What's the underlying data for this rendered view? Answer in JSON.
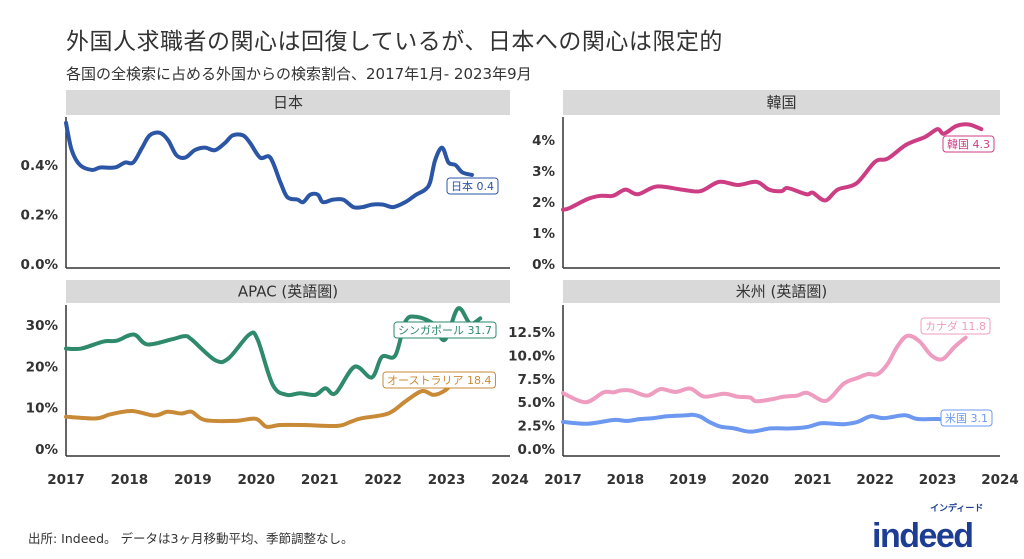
{
  "title": "外国人求職者の関心は回復しているが、日本への関心は限定的",
  "subtitle": "各国の全検索に占める外国からの検索割合、2017年1月- 2023年9月",
  "footer": "出所: Indeed。 データは3ヶ月移動平均、季節調整なし。",
  "logo": {
    "word": "indeed",
    "kana": "インディード",
    "color": "#1c3d93"
  },
  "chart_data": [
    {
      "type": "line",
      "title": "日本",
      "xticks": [
        "2017",
        "2018",
        "2019",
        "2020",
        "2021",
        "2022",
        "2023",
        "2024"
      ],
      "xlim": [
        2017,
        2024
      ],
      "yticks": [
        {
          "v": 0,
          "t": "0.0%"
        },
        {
          "v": 0.2,
          "t": "0.2%"
        },
        {
          "v": 0.4,
          "t": "0.4%"
        }
      ],
      "ylim": [
        0,
        0.59
      ],
      "show_xticks": false,
      "series": [
        {
          "name": "日本",
          "end_value": "0.4",
          "color": "#2b55a5",
          "points": [
            [
              2017.0,
              0.57
            ],
            [
              2017.09,
              0.46
            ],
            [
              2017.22,
              0.4
            ],
            [
              2017.41,
              0.38
            ],
            [
              2017.54,
              0.39
            ],
            [
              2017.77,
              0.39
            ],
            [
              2017.93,
              0.41
            ],
            [
              2018.06,
              0.41
            ],
            [
              2018.2,
              0.47
            ],
            [
              2018.32,
              0.52
            ],
            [
              2018.48,
              0.53
            ],
            [
              2018.61,
              0.5
            ],
            [
              2018.74,
              0.44
            ],
            [
              2018.88,
              0.43
            ],
            [
              2019.03,
              0.46
            ],
            [
              2019.19,
              0.47
            ],
            [
              2019.35,
              0.46
            ],
            [
              2019.51,
              0.49
            ],
            [
              2019.63,
              0.52
            ],
            [
              2019.79,
              0.52
            ],
            [
              2019.9,
              0.49
            ],
            [
              2020.06,
              0.43
            ],
            [
              2020.22,
              0.43
            ],
            [
              2020.38,
              0.33
            ],
            [
              2020.49,
              0.27
            ],
            [
              2020.65,
              0.26
            ],
            [
              2020.74,
              0.25
            ],
            [
              2020.85,
              0.28
            ],
            [
              2020.97,
              0.28
            ],
            [
              2021.05,
              0.25
            ],
            [
              2021.21,
              0.26
            ],
            [
              2021.37,
              0.26
            ],
            [
              2021.53,
              0.23
            ],
            [
              2021.67,
              0.23
            ],
            [
              2021.83,
              0.24
            ],
            [
              2022.0,
              0.24
            ],
            [
              2022.16,
              0.23
            ],
            [
              2022.35,
              0.25
            ],
            [
              2022.52,
              0.28
            ],
            [
              2022.66,
              0.3
            ],
            [
              2022.74,
              0.33
            ],
            [
              2022.82,
              0.42
            ],
            [
              2022.93,
              0.47
            ],
            [
              2023.03,
              0.41
            ],
            [
              2023.14,
              0.4
            ],
            [
              2023.25,
              0.37
            ],
            [
              2023.4,
              0.36
            ]
          ]
        }
      ]
    },
    {
      "type": "line",
      "title": "韓国",
      "xticks": [
        "2017",
        "2018",
        "2019",
        "2020",
        "2021",
        "2022",
        "2023",
        "2024"
      ],
      "xlim": [
        2017,
        2024
      ],
      "yticks": [
        {
          "v": 0,
          "t": "0%"
        },
        {
          "v": 1,
          "t": "1%"
        },
        {
          "v": 2,
          "t": "2%"
        },
        {
          "v": 3,
          "t": "3%"
        },
        {
          "v": 4,
          "t": "4%"
        }
      ],
      "ylim": [
        0,
        4.7
      ],
      "show_xticks": false,
      "series": [
        {
          "name": "韓国",
          "end_value": "4.3",
          "color": "#cc3d84",
          "points": [
            [
              2017.0,
              1.75
            ],
            [
              2017.1,
              1.8
            ],
            [
              2017.4,
              2.1
            ],
            [
              2017.6,
              2.2
            ],
            [
              2017.8,
              2.2
            ],
            [
              2018.0,
              2.4
            ],
            [
              2018.2,
              2.25
            ],
            [
              2018.5,
              2.5
            ],
            [
              2018.9,
              2.4
            ],
            [
              2019.2,
              2.35
            ],
            [
              2019.5,
              2.65
            ],
            [
              2019.8,
              2.55
            ],
            [
              2020.1,
              2.65
            ],
            [
              2020.3,
              2.4
            ],
            [
              2020.5,
              2.35
            ],
            [
              2020.6,
              2.45
            ],
            [
              2020.9,
              2.25
            ],
            [
              2021.0,
              2.3
            ],
            [
              2021.2,
              2.05
            ],
            [
              2021.4,
              2.4
            ],
            [
              2021.7,
              2.6
            ],
            [
              2022.0,
              3.3
            ],
            [
              2022.2,
              3.4
            ],
            [
              2022.5,
              3.85
            ],
            [
              2022.8,
              4.1
            ],
            [
              2023.0,
              4.35
            ],
            [
              2023.1,
              4.2
            ],
            [
              2023.3,
              4.45
            ],
            [
              2023.5,
              4.5
            ],
            [
              2023.7,
              4.35
            ]
          ]
        }
      ]
    },
    {
      "type": "line",
      "title": "APAC (英語圏)",
      "xticks": [
        "2017",
        "2018",
        "2019",
        "2020",
        "2021",
        "2022",
        "2023",
        "2024"
      ],
      "xlim": [
        2017,
        2024
      ],
      "yticks": [
        {
          "v": 0,
          "t": "0%"
        },
        {
          "v": 10,
          "t": "10%"
        },
        {
          "v": 20,
          "t": "20%"
        },
        {
          "v": 30,
          "t": "30%"
        }
      ],
      "ylim": [
        0,
        35
      ],
      "show_xticks": true,
      "series": [
        {
          "name": "シンガポール",
          "end_value": "31.7",
          "color": "#2e8a6a",
          "points": [
            [
              2017.0,
              24.3
            ],
            [
              2017.24,
              24.3
            ],
            [
              2017.59,
              26.0
            ],
            [
              2017.8,
              26.2
            ],
            [
              2018.07,
              27.7
            ],
            [
              2018.28,
              25.3
            ],
            [
              2018.66,
              26.5
            ],
            [
              2018.87,
              27.3
            ],
            [
              2018.98,
              26.5
            ],
            [
              2019.35,
              21.5
            ],
            [
              2019.56,
              21.9
            ],
            [
              2019.89,
              27.7
            ],
            [
              2020.02,
              26.5
            ],
            [
              2020.26,
              15.5
            ],
            [
              2020.48,
              13.1
            ],
            [
              2020.69,
              13.5
            ],
            [
              2020.93,
              13.1
            ],
            [
              2021.09,
              14.7
            ],
            [
              2021.25,
              13.5
            ],
            [
              2021.55,
              19.9
            ],
            [
              2021.82,
              17.3
            ],
            [
              2021.98,
              22.3
            ],
            [
              2022.19,
              22.6
            ],
            [
              2022.35,
              30.8
            ],
            [
              2022.51,
              32.0
            ],
            [
              2022.78,
              30.4
            ],
            [
              2022.97,
              26.4
            ],
            [
              2023.18,
              34.0
            ],
            [
              2023.37,
              30.4
            ],
            [
              2023.53,
              31.6
            ]
          ]
        },
        {
          "name": "オーストラリア",
          "end_value": "18.4",
          "color": "#c98a38",
          "points": [
            [
              2017.0,
              7.8
            ],
            [
              2017.48,
              7.4
            ],
            [
              2017.7,
              8.4
            ],
            [
              2018.04,
              9.2
            ],
            [
              2018.39,
              8.1
            ],
            [
              2018.6,
              9.0
            ],
            [
              2018.82,
              8.6
            ],
            [
              2018.98,
              9.0
            ],
            [
              2019.19,
              7.0
            ],
            [
              2019.67,
              6.8
            ],
            [
              2019.99,
              7.3
            ],
            [
              2020.16,
              5.4
            ],
            [
              2020.37,
              5.8
            ],
            [
              2020.74,
              5.8
            ],
            [
              2021.28,
              5.6
            ],
            [
              2021.49,
              6.6
            ],
            [
              2021.65,
              7.4
            ],
            [
              2022.08,
              8.6
            ],
            [
              2022.35,
              11.5
            ],
            [
              2022.61,
              14.0
            ],
            [
              2022.8,
              13.1
            ],
            [
              2022.99,
              14.3
            ],
            [
              2023.18,
              17.1
            ],
            [
              2023.53,
              18.3
            ]
          ]
        }
      ]
    },
    {
      "type": "line",
      "title": "米州 (英語圏)",
      "xticks": [
        "2017",
        "2018",
        "2019",
        "2020",
        "2021",
        "2022",
        "2023",
        "2024"
      ],
      "xlim": [
        2017,
        2024
      ],
      "yticks": [
        {
          "v": 0,
          "t": "0.0%"
        },
        {
          "v": 2.5,
          "t": "2.5%"
        },
        {
          "v": 5,
          "t": "5.0%"
        },
        {
          "v": 7.5,
          "t": "7.5%"
        },
        {
          "v": 10,
          "t": "10.0%"
        },
        {
          "v": 12.5,
          "t": "12.5%"
        }
      ],
      "ylim": [
        0,
        12.9
      ],
      "show_xticks": true,
      "series": [
        {
          "name": "カナダ",
          "end_value": "11.8",
          "color": "#ee9cc0",
          "points": [
            [
              2017.0,
              5.97
            ],
            [
              2017.36,
              5.0
            ],
            [
              2017.65,
              6.05
            ],
            [
              2017.81,
              6.05
            ],
            [
              2017.92,
              6.25
            ],
            [
              2018.08,
              6.25
            ],
            [
              2018.35,
              5.7
            ],
            [
              2018.56,
              6.4
            ],
            [
              2018.8,
              6.1
            ],
            [
              2019.04,
              6.45
            ],
            [
              2019.26,
              5.6
            ],
            [
              2019.58,
              5.9
            ],
            [
              2019.79,
              5.6
            ],
            [
              2020.0,
              5.5
            ],
            [
              2020.09,
              5.1
            ],
            [
              2020.33,
              5.3
            ],
            [
              2020.54,
              5.6
            ],
            [
              2020.75,
              5.7
            ],
            [
              2020.91,
              6.0
            ],
            [
              2021.16,
              5.15
            ],
            [
              2021.29,
              5.5
            ],
            [
              2021.5,
              7.0
            ],
            [
              2021.72,
              7.6
            ],
            [
              2021.88,
              8.0
            ],
            [
              2022.04,
              8.0
            ],
            [
              2022.2,
              9.1
            ],
            [
              2022.36,
              11.0
            ],
            [
              2022.52,
              12.1
            ],
            [
              2022.71,
              11.5
            ],
            [
              2022.9,
              10.0
            ],
            [
              2023.08,
              9.6
            ],
            [
              2023.27,
              10.9
            ],
            [
              2023.45,
              11.9
            ]
          ]
        },
        {
          "name": "米国",
          "end_value": "3.1",
          "color": "#6d98f0",
          "points": [
            [
              2017.0,
              2.9
            ],
            [
              2017.39,
              2.7
            ],
            [
              2017.81,
              3.1
            ],
            [
              2018.03,
              3.0
            ],
            [
              2018.24,
              3.2
            ],
            [
              2018.45,
              3.3
            ],
            [
              2018.67,
              3.5
            ],
            [
              2018.99,
              3.6
            ],
            [
              2019.07,
              3.66
            ],
            [
              2019.2,
              3.46
            ],
            [
              2019.34,
              2.9
            ],
            [
              2019.52,
              2.4
            ],
            [
              2019.74,
              2.2
            ],
            [
              2020.0,
              1.85
            ],
            [
              2020.33,
              2.2
            ],
            [
              2020.65,
              2.2
            ],
            [
              2020.91,
              2.35
            ],
            [
              2021.13,
              2.75
            ],
            [
              2021.34,
              2.7
            ],
            [
              2021.5,
              2.65
            ],
            [
              2021.72,
              2.9
            ],
            [
              2021.93,
              3.5
            ],
            [
              2022.14,
              3.3
            ],
            [
              2022.47,
              3.6
            ],
            [
              2022.68,
              3.2
            ],
            [
              2022.99,
              3.2
            ],
            [
              2023.27,
              3.0
            ]
          ]
        }
      ]
    }
  ]
}
